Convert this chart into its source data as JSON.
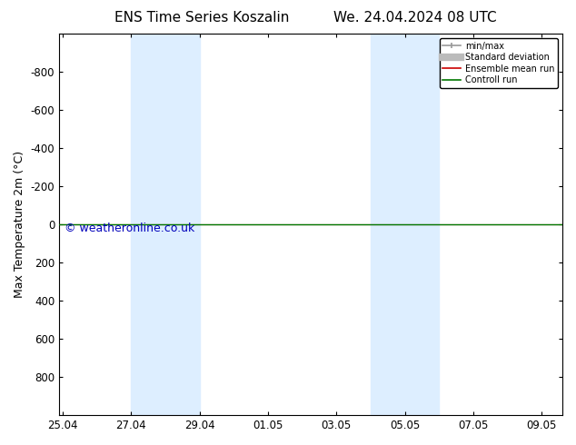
{
  "title_left": "ENS Time Series Koszalin",
  "title_right": "We. 24.04.2024 08 UTC",
  "ylabel": "Max Temperature 2m (°C)",
  "ylim": [
    -1000,
    1000
  ],
  "yticks": [
    -800,
    -600,
    -400,
    -200,
    0,
    200,
    400,
    600,
    800
  ],
  "xtick_labels": [
    "25.04",
    "27.04",
    "29.04",
    "01.05",
    "03.05",
    "05.05",
    "07.05",
    "09.05"
  ],
  "xtick_positions": [
    0,
    2,
    4,
    6,
    8,
    10,
    12,
    14
  ],
  "blue_bands": [
    [
      2,
      3
    ],
    [
      3,
      4
    ],
    [
      9,
      10
    ],
    [
      10,
      11
    ]
  ],
  "band_color": "#ddeeff",
  "green_line_y": 0,
  "green_line_color": "#007700",
  "red_line_color": "#cc0000",
  "legend_items": [
    "min/max",
    "Standard deviation",
    "Ensemble mean run",
    "Controll run"
  ],
  "legend_colors_line": [
    "#999999",
    "#bbbbbb",
    "#cc0000",
    "#007700"
  ],
  "watermark": "© weatheronline.co.uk",
  "watermark_color": "#0000bb",
  "background_color": "#ffffff",
  "plot_bg_color": "#ffffff",
  "title_fontsize": 11,
  "tick_label_fontsize": 8.5,
  "ylabel_fontsize": 9
}
